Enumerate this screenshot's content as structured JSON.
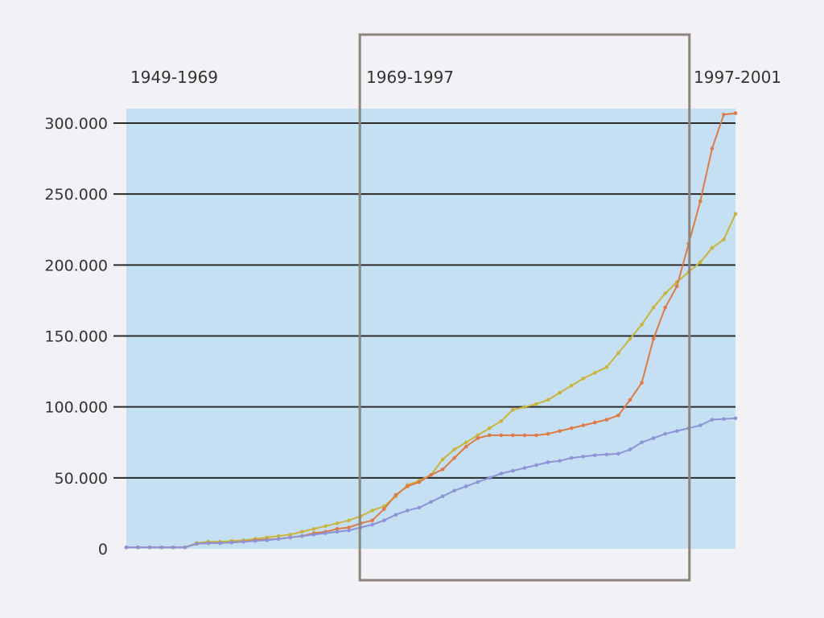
{
  "chart_data": {
    "type": "line",
    "x": [
      1949,
      1950,
      1951,
      1952,
      1953,
      1954,
      1955,
      1956,
      1957,
      1958,
      1959,
      1960,
      1961,
      1962,
      1963,
      1964,
      1965,
      1966,
      1967,
      1968,
      1969,
      1970,
      1971,
      1972,
      1973,
      1974,
      1975,
      1976,
      1977,
      1978,
      1979,
      1980,
      1981,
      1982,
      1983,
      1984,
      1985,
      1986,
      1987,
      1988,
      1989,
      1990,
      1991,
      1992,
      1993,
      1994,
      1995,
      1996,
      1997,
      1998,
      1999,
      2000,
      2001
    ],
    "xlim": [
      1949,
      2001
    ],
    "ylim": [
      0,
      310000
    ],
    "yticks": [
      0,
      50000,
      100000,
      150000,
      200000,
      250000,
      300000
    ],
    "ytick_labels": [
      "0",
      "50.000",
      "100.000",
      "150.000",
      "200.000",
      "250.000",
      "300.000"
    ],
    "grid": true,
    "series": [
      {
        "color": "#c8b43e",
        "values": [
          1000,
          1000,
          1000,
          1000,
          1000,
          1000,
          4000,
          5000,
          5000,
          5500,
          6000,
          7000,
          8000,
          9000,
          10000,
          12000,
          14000,
          16000,
          18000,
          20000,
          23000,
          27000,
          30000,
          37000,
          45000,
          48000,
          52000,
          63000,
          70000,
          75000,
          80000,
          85000,
          90000,
          98000,
          100000,
          102000,
          105000,
          110000,
          115000,
          120000,
          124000,
          128000,
          138000,
          148000,
          158000,
          170000,
          180000,
          188000,
          195000,
          202000,
          212000,
          218000,
          236000
        ]
      },
      {
        "color": "#dd7a45",
        "values": [
          1000,
          1000,
          1000,
          1000,
          1000,
          1000,
          3500,
          4000,
          4000,
          4500,
          5000,
          6000,
          6500,
          7000,
          8000,
          9000,
          11000,
          12000,
          14000,
          15000,
          18000,
          20000,
          28000,
          38000,
          44000,
          47000,
          52000,
          56000,
          64000,
          72000,
          78000,
          80000,
          80000,
          80000,
          80000,
          80000,
          81000,
          83000,
          85000,
          87000,
          89000,
          91000,
          94000,
          105000,
          117000,
          148000,
          170000,
          185000,
          215000,
          245000,
          282000,
          306000,
          307000
        ]
      },
      {
        "color": "#8d93d6",
        "values": [
          1000,
          1000,
          1000,
          1000,
          1000,
          1000,
          3500,
          4000,
          4000,
          4500,
          5000,
          5500,
          6000,
          7000,
          8000,
          9000,
          10000,
          11000,
          12000,
          13000,
          15000,
          17000,
          20000,
          24000,
          27000,
          29000,
          33000,
          37000,
          41000,
          44000,
          47000,
          50000,
          53000,
          55000,
          57000,
          59000,
          61000,
          62000,
          64000,
          65000,
          66000,
          66500,
          67000,
          70000,
          75000,
          78000,
          81000,
          83000,
          85000,
          87000,
          91000,
          91500,
          92000
        ]
      }
    ],
    "periods": [
      {
        "label": "1949-1969",
        "from": 1949,
        "to": 1969
      },
      {
        "label": "1969-1997",
        "from": 1969,
        "to": 1997
      },
      {
        "label": "1997-2001",
        "from": 1997,
        "to": 2001
      }
    ],
    "colors": {
      "plot_background": "#c6e0f3",
      "grid": "#2b2b2b",
      "highlight_box": "#8d857c"
    }
  }
}
